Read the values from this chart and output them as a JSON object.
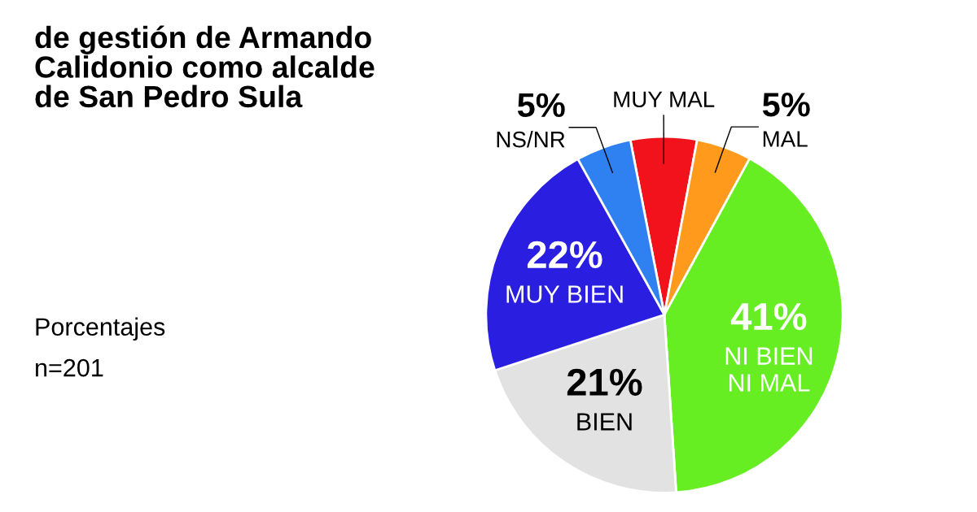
{
  "chart_data": {
    "type": "pie",
    "title": "de gestión de Armando Calidonio como alcalde de San Pedro Sula",
    "subtitle": "Porcentajes",
    "annotations": [
      "n=201"
    ],
    "categories": [
      "MUY MAL",
      "MAL",
      "NI BIEN NI MAL",
      "BIEN",
      "MUY BIEN",
      "NS/NR"
    ],
    "values": [
      6,
      5,
      41,
      21,
      22,
      5
    ],
    "value_labels": [
      null,
      "5%",
      "41%",
      "21%",
      "22%",
      "5%"
    ],
    "colors": [
      "#f2121b",
      "#ff9a1c",
      "#66ee22",
      "#e2e2e2",
      "#2a1ee0",
      "#2f80f0"
    ],
    "legend": false
  }
}
